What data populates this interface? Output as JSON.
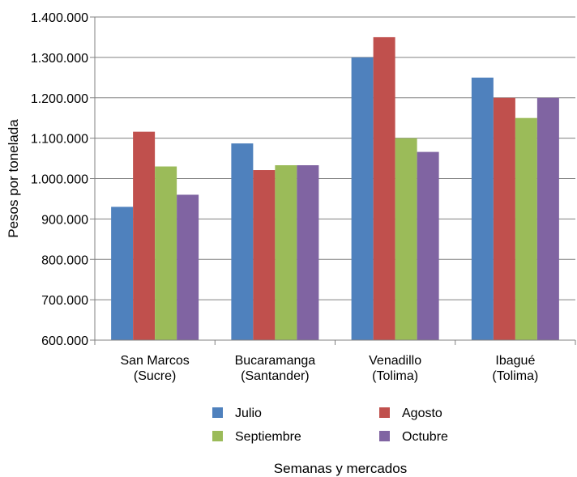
{
  "chart_data": {
    "type": "bar",
    "title": "",
    "xlabel": "Semanas y mercados",
    "ylabel": "Pesos por tonelada",
    "ylim": [
      600000,
      1400000
    ],
    "yticks": [
      600000,
      700000,
      800000,
      900000,
      1000000,
      1100000,
      1200000,
      1300000,
      1400000
    ],
    "ytick_labels": [
      "600.000",
      "700.000",
      "800.000",
      "900.000",
      "1.000.000",
      "1.100.000",
      "1.200.000",
      "1.300.000",
      "1.400.000"
    ],
    "grid": true,
    "legend_position": "bottom",
    "categories": [
      [
        "San Marcos",
        "(Sucre)"
      ],
      [
        "Bucaramanga",
        "(Santander)"
      ],
      [
        "Venadillo",
        "(Tolima)"
      ],
      [
        "Ibagué",
        "(Tolima)"
      ]
    ],
    "series": [
      {
        "name": "Julio",
        "color": "#4f81bd",
        "values": [
          930000,
          1087000,
          1300000,
          1250000
        ]
      },
      {
        "name": "Agosto",
        "color": "#c0504d",
        "values": [
          1116000,
          1021000,
          1350000,
          1200000
        ]
      },
      {
        "name": "Septiembre",
        "color": "#9bbb59",
        "values": [
          1030000,
          1033000,
          1100000,
          1150000
        ]
      },
      {
        "name": "Octubre",
        "color": "#8064a2",
        "values": [
          960000,
          1033000,
          1066000,
          1200000
        ]
      }
    ]
  }
}
